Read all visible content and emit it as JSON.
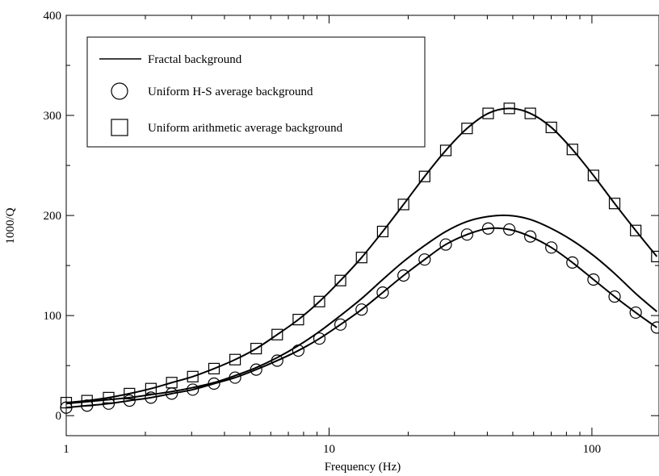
{
  "chart_data": {
    "type": "line",
    "xlabel": "Frequency (Hz)",
    "ylabel": "1000/Q",
    "xscale": "log",
    "xlim": [
      1,
      180
    ],
    "ylim": [
      -20,
      400
    ],
    "x_ticks": [
      1,
      10,
      100
    ],
    "x_tick_labels": [
      "1",
      "10",
      "100"
    ],
    "y_ticks": [
      0,
      100,
      200,
      300,
      400
    ],
    "y_tick_labels": [
      "0",
      "100",
      "200",
      "300",
      "400"
    ],
    "grid": false,
    "legend_position": "top-left",
    "legend": [
      {
        "label": "Fractal background",
        "marker": "line"
      },
      {
        "label": "Uniform H-S average background",
        "marker": "circle"
      },
      {
        "label": "Uniform arithmetic average background",
        "marker": "square"
      }
    ],
    "series": [
      {
        "name": "Fractal background",
        "style": "line",
        "x": [
          1,
          1.2,
          1.45,
          1.74,
          2.1,
          2.52,
          3.03,
          3.65,
          4.39,
          5.28,
          6.35,
          7.64,
          9.19,
          11.05,
          13.3,
          16.0,
          19.2,
          23.1,
          27.8,
          33.5,
          40.3,
          48.5,
          58.3,
          70.1,
          84.3,
          101.4,
          122,
          146.8,
          176.6
        ],
        "y": [
          12,
          14,
          16,
          18,
          21,
          24,
          28,
          33,
          40,
          48,
          58,
          70,
          84,
          100,
          117,
          136,
          154,
          170,
          184,
          194,
          199,
          200,
          196,
          187,
          175,
          160,
          142,
          122,
          104
        ]
      },
      {
        "name": "Uniform H-S average background",
        "style": "line-circle",
        "x": [
          1,
          1.2,
          1.45,
          1.74,
          2.1,
          2.52,
          3.03,
          3.65,
          4.39,
          5.28,
          6.35,
          7.64,
          9.19,
          11.05,
          13.3,
          16.0,
          19.2,
          23.1,
          27.8,
          33.5,
          40.3,
          48.5,
          58.3,
          70.1,
          84.3,
          101.4,
          122,
          146.8,
          176.6
        ],
        "y": [
          8,
          10,
          12,
          15,
          18,
          22,
          26,
          32,
          38,
          46,
          55,
          65,
          77,
          91,
          106,
          123,
          140,
          156,
          171,
          181,
          187,
          186,
          179,
          168,
          153,
          136,
          119,
          103,
          88
        ]
      },
      {
        "name": "Uniform arithmetic average background",
        "style": "line-square",
        "x": [
          1,
          1.2,
          1.45,
          1.74,
          2.1,
          2.52,
          3.03,
          3.65,
          4.39,
          5.28,
          6.35,
          7.64,
          9.19,
          11.05,
          13.3,
          16.0,
          19.2,
          23.1,
          27.8,
          33.5,
          40.3,
          48.5,
          58.3,
          70.1,
          84.3,
          101.4,
          122,
          146.8,
          176.6
        ],
        "y": [
          13,
          15,
          18,
          22,
          27,
          33,
          39,
          47,
          56,
          67,
          81,
          96,
          114,
          135,
          158,
          184,
          211,
          239,
          265,
          287,
          302,
          307,
          302,
          288,
          266,
          240,
          212,
          185,
          159
        ]
      }
    ]
  }
}
